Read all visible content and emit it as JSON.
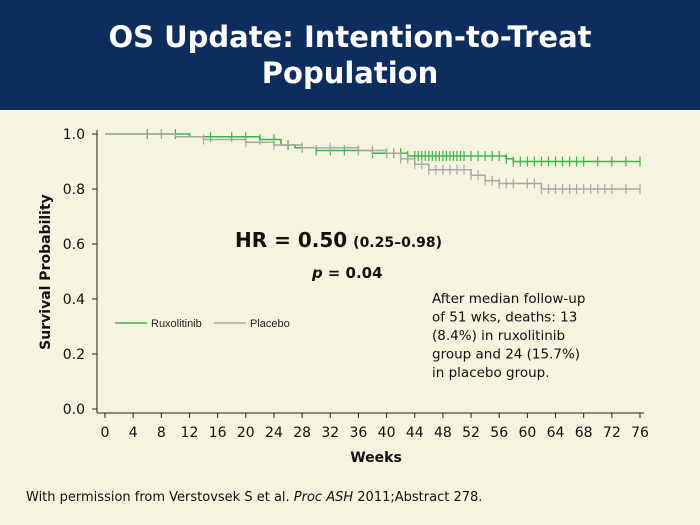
{
  "slide": {
    "title": "OS Update: Intention-to-Treat Population",
    "footer_prefix": "With permission from Verstovsek S et al.",
    "footer_journal": "Proc ASH",
    "footer_suffix": "2011;Abstract 278."
  },
  "colors": {
    "header_bg": "#0d2d5e",
    "background": "#f6f3df",
    "ruxolitinib": "#3ab54a",
    "placebo": "#a9a9a9"
  },
  "chart_data": {
    "type": "line",
    "subtype": "kaplan-meier",
    "xlabel": "Weeks",
    "ylabel": "Survival Probability",
    "xlim": [
      0,
      76
    ],
    "ylim": [
      0,
      1
    ],
    "xticks": [
      0,
      4,
      8,
      12,
      16,
      20,
      24,
      28,
      32,
      36,
      40,
      44,
      48,
      52,
      56,
      60,
      64,
      68,
      72,
      76
    ],
    "yticks": [
      "0.0",
      "0.2",
      "0.4",
      "0.6",
      "0.8",
      "1.0"
    ],
    "grid": false,
    "legend_position": "left-middle",
    "series": [
      {
        "name": "Ruxolitinib",
        "color": "#3ab54a",
        "steps": [
          [
            0,
            1.0
          ],
          [
            12,
            0.99
          ],
          [
            22,
            0.98
          ],
          [
            25,
            0.96
          ],
          [
            27,
            0.95
          ],
          [
            30,
            0.94
          ],
          [
            38,
            0.93
          ],
          [
            43,
            0.92
          ],
          [
            57,
            0.91
          ],
          [
            58,
            0.9
          ],
          [
            76,
            0.9
          ]
        ],
        "censor_weeks": [
          6,
          10,
          15,
          18,
          20,
          22,
          24,
          26,
          28,
          30,
          32,
          34,
          36,
          38,
          40,
          41,
          42,
          43,
          44,
          44.5,
          45,
          45.5,
          46,
          46.5,
          47,
          47.5,
          48,
          48.5,
          49,
          49.5,
          50,
          50.5,
          51,
          52,
          53,
          54,
          55,
          56,
          57,
          58,
          59,
          60,
          61,
          62,
          63,
          64,
          65,
          66,
          67,
          68,
          70,
          72,
          74,
          76
        ]
      },
      {
        "name": "Placebo",
        "color": "#a9a9a9",
        "steps": [
          [
            0,
            1.0
          ],
          [
            10,
            0.99
          ],
          [
            14,
            0.98
          ],
          [
            20,
            0.97
          ],
          [
            24,
            0.96
          ],
          [
            28,
            0.95
          ],
          [
            36,
            0.94
          ],
          [
            40,
            0.93
          ],
          [
            42,
            0.91
          ],
          [
            44,
            0.89
          ],
          [
            46,
            0.87
          ],
          [
            52,
            0.85
          ],
          [
            54,
            0.83
          ],
          [
            56,
            0.82
          ],
          [
            62,
            0.8
          ],
          [
            76,
            0.8
          ]
        ],
        "censor_weeks": [
          8,
          14,
          20,
          24,
          28,
          32,
          36,
          38,
          40,
          41,
          42,
          43,
          44,
          45,
          46,
          47,
          48,
          49,
          50,
          51,
          52,
          53,
          54,
          55,
          56,
          57,
          58,
          60,
          61,
          62,
          63,
          64,
          65,
          66,
          67,
          68,
          69,
          70,
          71,
          72,
          74,
          76
        ]
      }
    ],
    "annotations": {
      "hr_label": "HR = 0.50",
      "hr_ci": "(0.25–0.98)",
      "p_symbol": "p",
      "p_value": "= 0.04",
      "note": [
        "After median follow-up",
        "of 51 wks, deaths: 13",
        "(8.4%) in ruxolitinib",
        "group and 24 (15.7%)",
        "in placebo group."
      ]
    }
  }
}
